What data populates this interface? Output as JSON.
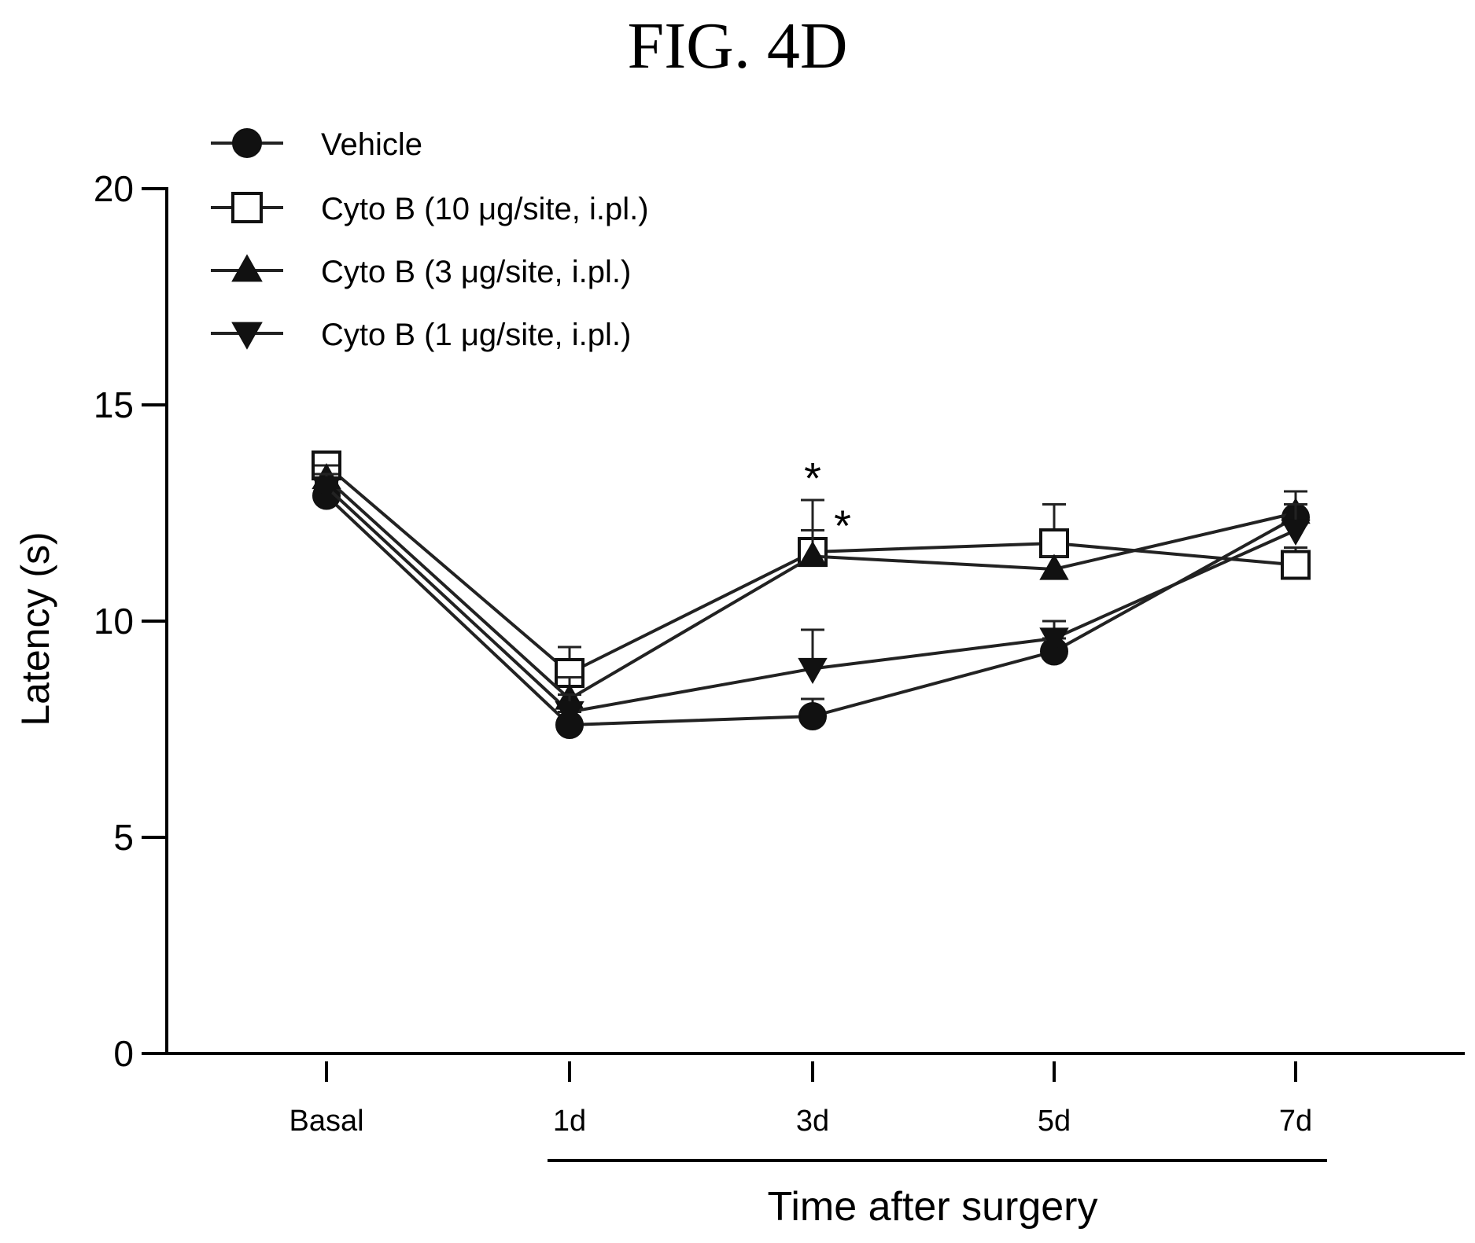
{
  "figure_title": "FIG. 4D",
  "chart_data": {
    "type": "line",
    "title": "",
    "xlabel": "Time after surgery",
    "ylabel": "Latency (s)",
    "categories": [
      "Basal",
      "1d",
      "3d",
      "5d",
      "7d"
    ],
    "ylim": [
      0,
      20
    ],
    "yticks": [
      0,
      5,
      10,
      15,
      20
    ],
    "grid": false,
    "legend_position": "top-left",
    "series": [
      {
        "name": "Vehicle",
        "marker": "circle-filled",
        "values": [
          12.9,
          7.6,
          7.8,
          9.3,
          12.4
        ],
        "errors": [
          0.3,
          0.3,
          0.4,
          0.3,
          0.6
        ]
      },
      {
        "name": "Cyto B (10  μg/site, i.pl.)",
        "marker": "square-open",
        "values": [
          13.6,
          8.8,
          11.6,
          11.8,
          11.3
        ],
        "errors": [
          0.3,
          0.6,
          1.2,
          0.9,
          0.4
        ]
      },
      {
        "name": "Cyto B (3 μg/site, i.pl.)",
        "marker": "triangle-up-filled",
        "values": [
          13.3,
          8.2,
          11.5,
          11.2,
          12.5
        ],
        "errors": [
          0.3,
          0.5,
          0.6,
          0.3,
          0.5
        ]
      },
      {
        "name": "Cyto B (1 μg/site, i.pl.)",
        "marker": "triangle-down-filled",
        "values": [
          13.1,
          7.9,
          8.9,
          9.6,
          12.1
        ],
        "errors": [
          0.3,
          0.4,
          0.9,
          0.4,
          0.6
        ]
      }
    ],
    "annotations": [
      {
        "text": "*",
        "category": "3d",
        "y": 13.5
      },
      {
        "text": "*",
        "category": "3d",
        "y": 12.4
      }
    ],
    "time_bracket_span": [
      "1d",
      "7d"
    ]
  }
}
